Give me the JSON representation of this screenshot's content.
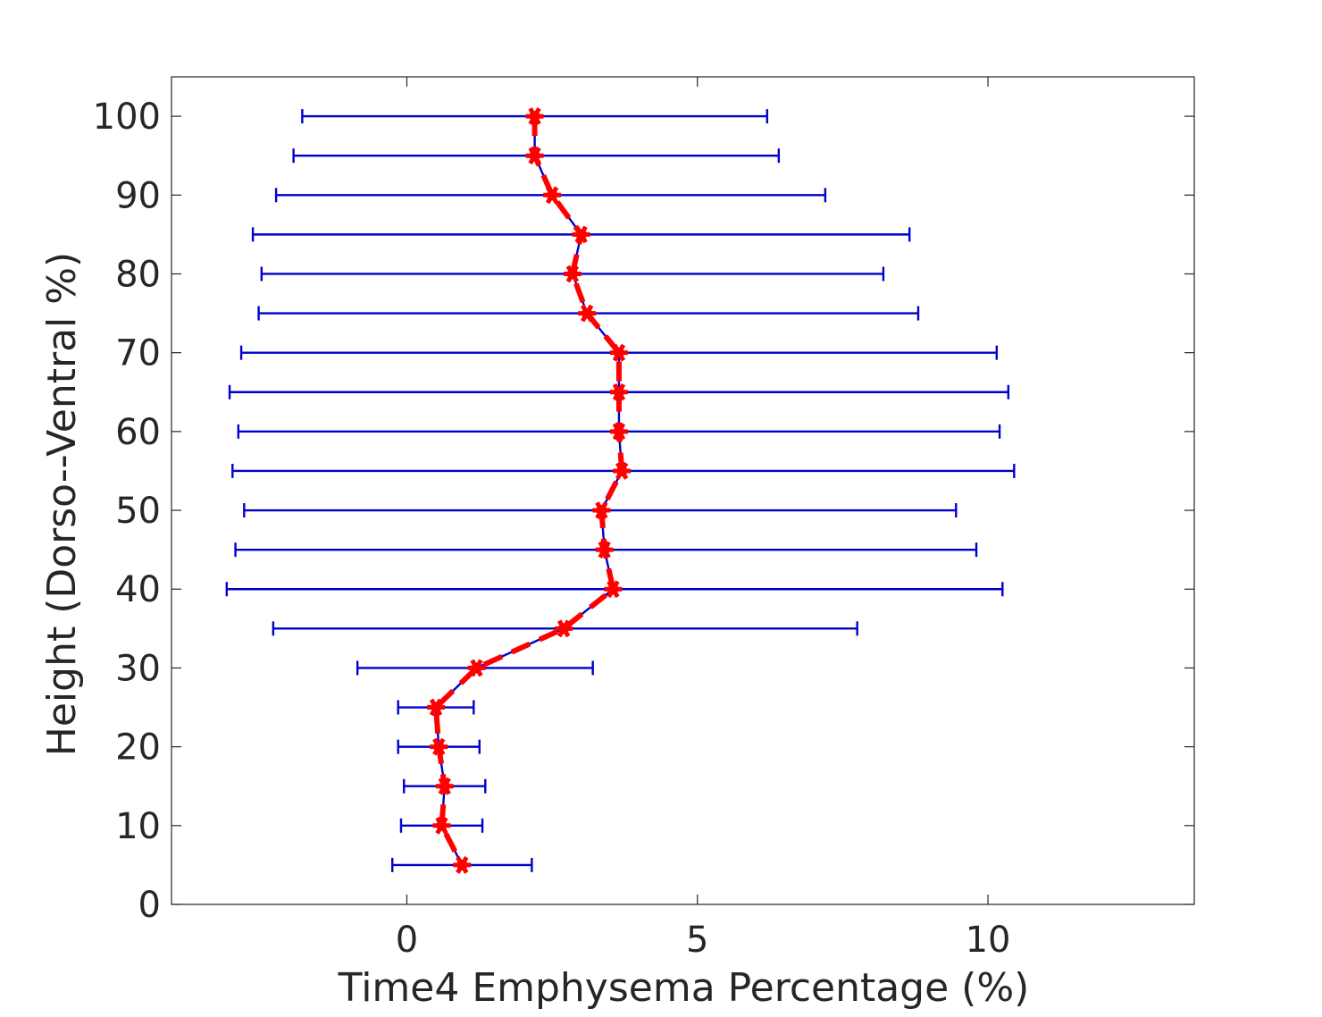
{
  "chart_data": {
    "type": "line",
    "title": "",
    "xlabel": "Time4 Emphysema Percentage (%)",
    "ylabel": "Height (Dorso--Ventral %)",
    "xlim": [
      -4.05,
      13.55
    ],
    "ylim": [
      0,
      105
    ],
    "xticks": [
      0,
      5,
      10
    ],
    "yticks": [
      0,
      10,
      20,
      30,
      40,
      50,
      60,
      70,
      80,
      90,
      100
    ],
    "grid": false,
    "legend": "none",
    "series": [
      {
        "style": "mean with error bars",
        "y": [
          100,
          95,
          90,
          85,
          80,
          75,
          70,
          65,
          60,
          55,
          50,
          45,
          40,
          35,
          30,
          25,
          20,
          15,
          10,
          5
        ],
        "x": [
          2.2,
          2.2,
          2.5,
          3.0,
          2.85,
          3.1,
          3.65,
          3.65,
          3.65,
          3.7,
          3.35,
          3.4,
          3.55,
          2.7,
          1.2,
          0.5,
          0.55,
          0.65,
          0.6,
          0.95
        ],
        "x_lower": [
          -1.8,
          -1.95,
          -2.25,
          -2.65,
          -2.5,
          -2.55,
          -2.85,
          -3.05,
          -2.9,
          -3.0,
          -2.8,
          -2.95,
          -3.1,
          -2.3,
          -0.85,
          -0.15,
          -0.15,
          -0.05,
          -0.1,
          -0.25
        ],
        "x_upper": [
          6.2,
          6.4,
          7.2,
          8.65,
          8.2,
          8.8,
          10.15,
          10.35,
          10.2,
          10.45,
          9.45,
          9.8,
          10.25,
          7.75,
          3.2,
          1.15,
          1.25,
          1.35,
          1.3,
          2.15
        ]
      }
    ]
  },
  "style": {
    "errorbar_color": "#0000cc",
    "mean_line_color": "#ff0000",
    "marker_color": "#ff0000",
    "axis_color": "#262626"
  }
}
